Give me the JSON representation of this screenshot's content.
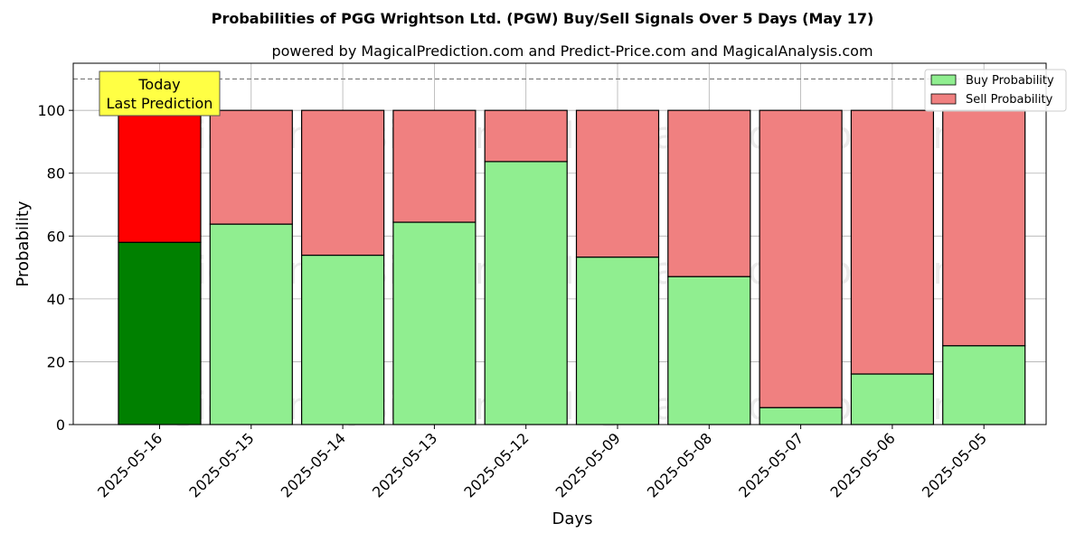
{
  "chart_data": {
    "type": "bar",
    "stacked": true,
    "title": "Probabilities of PGG Wrightson Ltd. (PGW) Buy/Sell Signals Over 5 Days (May 17)",
    "subtitle": "powered by MagicalPrediction.com and Predict-Price.com and MagicalAnalysis.com",
    "xlabel": "Days",
    "ylabel": "Probability",
    "ylim": [
      0,
      115
    ],
    "yticks": [
      0,
      20,
      40,
      60,
      80,
      100
    ],
    "reference_line": 110,
    "grid": true,
    "legend_position": "top-right",
    "categories": [
      "2025-05-16",
      "2025-05-15",
      "2025-05-14",
      "2025-05-13",
      "2025-05-12",
      "2025-05-09",
      "2025-05-08",
      "2025-05-07",
      "2025-05-06",
      "2025-05-05"
    ],
    "series": [
      {
        "name": "Buy Probability",
        "values": [
          58,
          63.8,
          53.9,
          64.4,
          83.7,
          53.3,
          47.1,
          5.4,
          16.1,
          25.1
        ],
        "color": "#90ee90",
        "highlight_color": "#008000"
      },
      {
        "name": "Sell Probability",
        "values": [
          42,
          36.2,
          46.1,
          35.6,
          16.3,
          46.7,
          52.9,
          94.6,
          83.9,
          74.9
        ],
        "color": "#f08080",
        "highlight_color": "#ff0000"
      }
    ],
    "highlight_index": 0,
    "annotation": {
      "line1": "Today",
      "line2": "Last Prediction",
      "background": "#ffff44"
    },
    "watermarks": [
      "MagicalAnalysis.com",
      "MagicalPrediction.com"
    ]
  }
}
